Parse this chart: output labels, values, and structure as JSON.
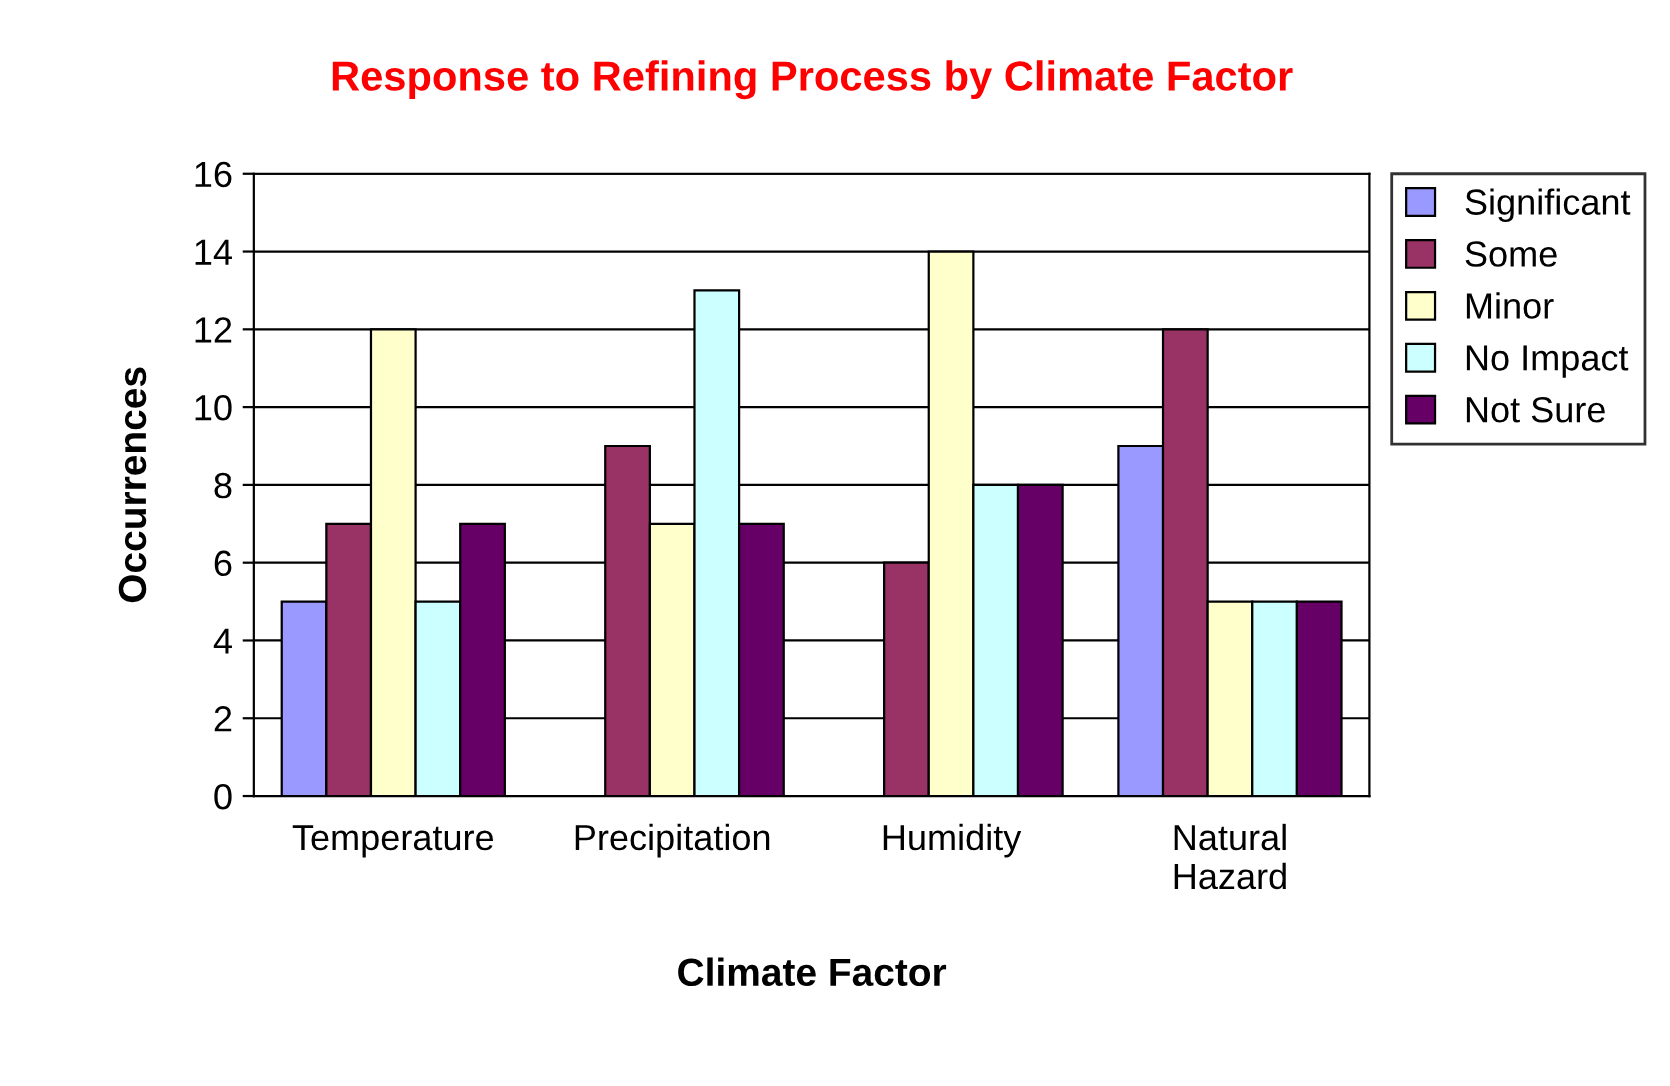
{
  "chart_data": {
    "type": "bar",
    "title": "Response to Refining Process by Climate Factor",
    "xlabel": "Climate Factor",
    "ylabel": "Occurrences",
    "categories": [
      "Temperature",
      "Precipitation",
      "Humidity",
      "Natural\nHazard"
    ],
    "series": [
      {
        "name": "Significant",
        "color": "#9999ff",
        "values": [
          5,
          null,
          null,
          9
        ]
      },
      {
        "name": "Some",
        "color": "#993366",
        "values": [
          7,
          9,
          6,
          12
        ]
      },
      {
        "name": "Minor",
        "color": "#ffffcc",
        "values": [
          12,
          7,
          14,
          5
        ]
      },
      {
        "name": "No Impact",
        "color": "#ccffff",
        "values": [
          5,
          13,
          8,
          5
        ]
      },
      {
        "name": "Not Sure",
        "color": "#660066",
        "values": [
          7,
          7,
          8,
          5
        ]
      }
    ],
    "ylim": [
      0,
      16
    ],
    "yticks": [
      0,
      2,
      4,
      6,
      8,
      10,
      12,
      14,
      16
    ],
    "grid": "y",
    "legend": "right"
  }
}
